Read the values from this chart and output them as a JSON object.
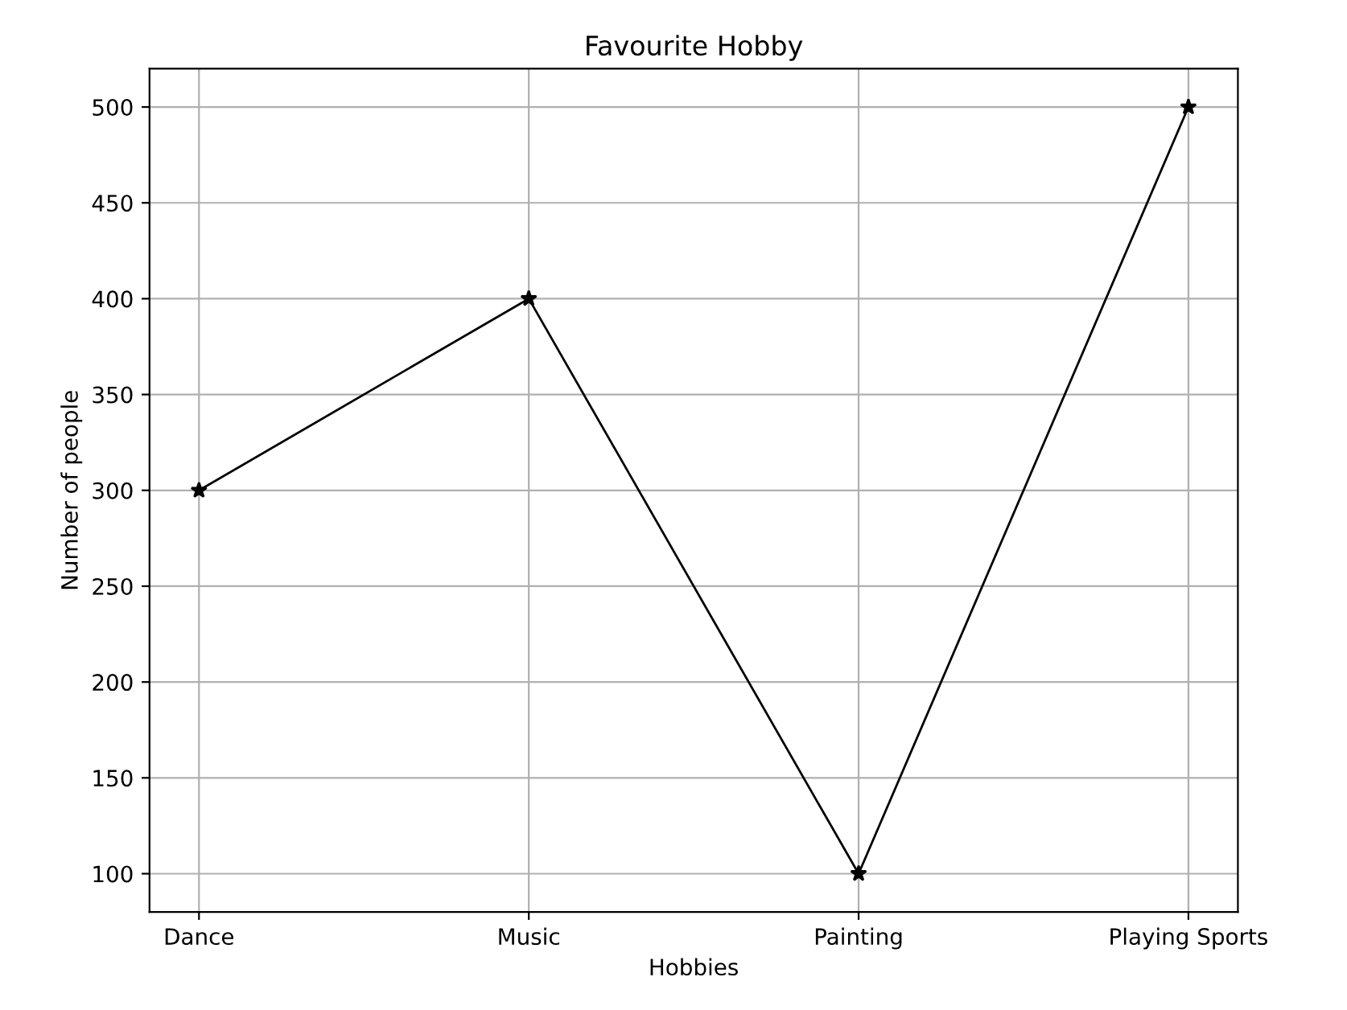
{
  "chart_data": {
    "type": "line",
    "title": "Favourite Hobby",
    "xlabel": "Hobbies",
    "ylabel": "Number of people",
    "categories": [
      "Dance",
      "Music",
      "Painting",
      "Playing Sports"
    ],
    "series": [
      {
        "color": "#000000",
        "values": [
          300,
          400,
          100,
          500
        ]
      }
    ],
    "ylim": [
      80,
      520
    ],
    "yticks": [
      100,
      150,
      200,
      250,
      300,
      350,
      400,
      450,
      500
    ],
    "grid": true,
    "marker": "star",
    "line_style": "solid"
  }
}
